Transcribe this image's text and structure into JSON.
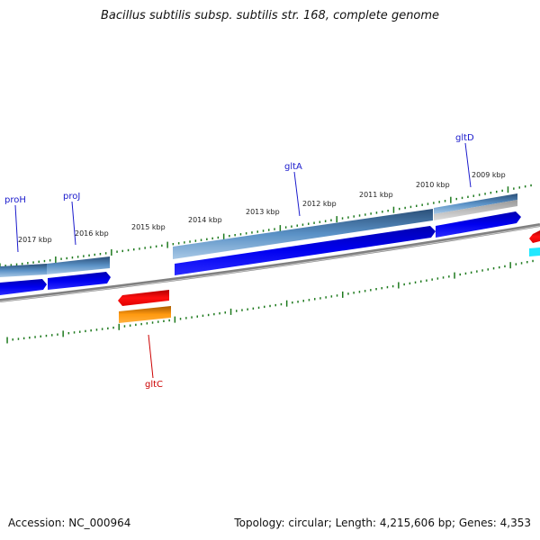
{
  "title": "Bacillus subtilis subsp. subtilis str. 168, complete genome",
  "footer": {
    "accession": "Accession: NC_000964",
    "summary": "Topology: circular; Length: 4,215,606 bp; Genes: 4,353"
  },
  "scale_ticks": [
    {
      "label": "2017 kbp"
    },
    {
      "label": "2016 kbp"
    },
    {
      "label": "2015 kbp"
    },
    {
      "label": "2014 kbp"
    },
    {
      "label": "2013 kbp"
    },
    {
      "label": "2012 kbp"
    },
    {
      "label": "2011 kbp"
    },
    {
      "label": "2010 kbp"
    },
    {
      "label": "2009 kbp"
    }
  ],
  "gene_labels": [
    {
      "name": "proH",
      "color": "#1a1acc"
    },
    {
      "name": "proJ",
      "color": "#1a1acc"
    },
    {
      "name": "gltA",
      "color": "#1a1acc"
    },
    {
      "name": "gltD",
      "color": "#1a1acc"
    },
    {
      "name": "gltC",
      "color": "#cc0000"
    }
  ],
  "colors": {
    "forward_cds": "#0000e6",
    "gene_bar": "#4a7fb0",
    "reverse_cds": "#e00000",
    "reverse_gene": "#ff8c00",
    "tick": "#1e7a1e",
    "backbone": "#888888"
  }
}
